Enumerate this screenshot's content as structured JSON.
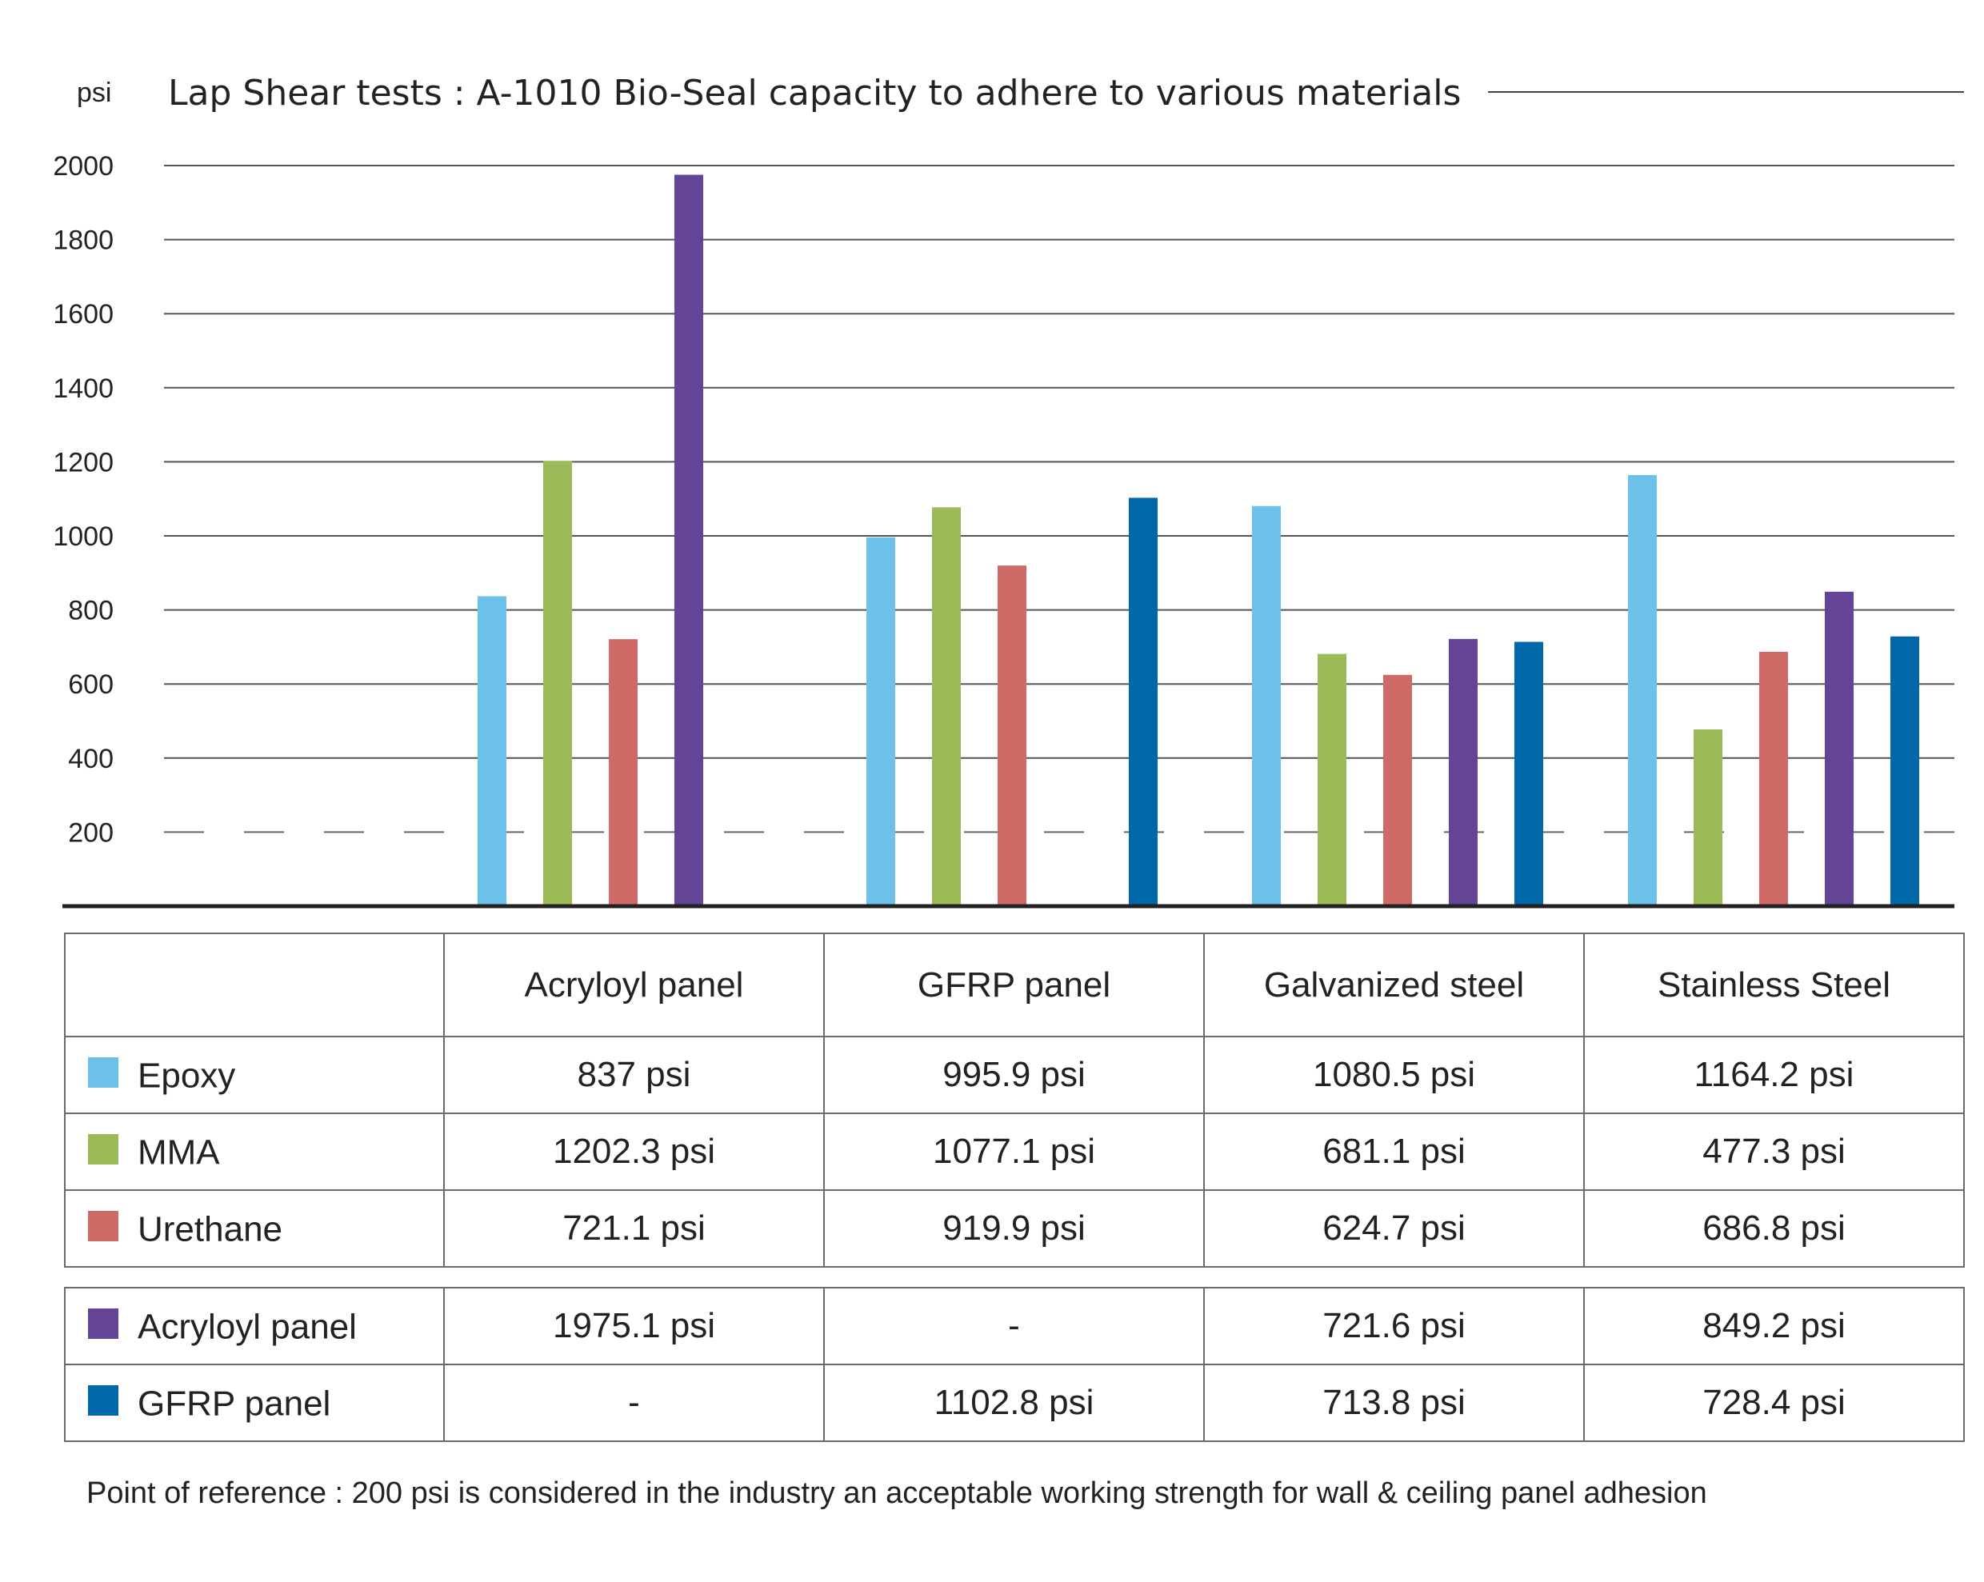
{
  "chart_data": {
    "type": "bar",
    "title": "Lap Shear tests : A-1010 Bio-Seal capacity to adhere to various materials",
    "ylabel": "psi",
    "ylim": [
      0,
      2000
    ],
    "yticks": [
      200,
      400,
      600,
      800,
      1000,
      1200,
      1400,
      1600,
      1800,
      2000
    ],
    "reference_line": 200,
    "grid": true,
    "categories": [
      "Acryloyl panel",
      "GFRP panel",
      "Galvanized steel",
      "Stainless Steel"
    ],
    "series": [
      {
        "name": "Epoxy",
        "color": "#6cc1e8",
        "values": [
          837,
          995.9,
          1080.5,
          1164.2
        ]
      },
      {
        "name": "MMA",
        "color": "#9bbb58",
        "values": [
          1202.3,
          1077.1,
          681.1,
          477.3
        ]
      },
      {
        "name": "Urethane",
        "color": "#d06a66",
        "values": [
          721.1,
          919.9,
          624.7,
          686.8
        ]
      },
      {
        "name": "Acryloyl panel",
        "color": "#634497",
        "values": [
          1975.1,
          null,
          721.6,
          849.2
        ]
      },
      {
        "name": "GFRP panel",
        "color": "#0068a9",
        "values": [
          null,
          1102.8,
          713.8,
          728.4
        ]
      }
    ]
  },
  "table": {
    "headers": [
      "",
      "Acryloyl panel",
      "GFRP panel",
      "Galvanized steel",
      "Stainless Steel"
    ],
    "group1": [
      {
        "label": "Epoxy",
        "color": "#6cc1e8",
        "cells": [
          "837 psi",
          "995.9 psi",
          "1080.5 psi",
          "1164.2 psi"
        ]
      },
      {
        "label": "MMA",
        "color": "#9bbb58",
        "cells": [
          "1202.3 psi",
          "1077.1 psi",
          "681.1 psi",
          "477.3 psi"
        ]
      },
      {
        "label": "Urethane",
        "color": "#d06a66",
        "cells": [
          "721.1 psi",
          "919.9 psi",
          "624.7 psi",
          "686.8 psi"
        ]
      }
    ],
    "group2": [
      {
        "label": "Acryloyl panel",
        "color": "#634497",
        "cells": [
          "1975.1 psi",
          "-",
          "721.6 psi",
          "849.2 psi"
        ]
      },
      {
        "label": "GFRP panel",
        "color": "#0068a9",
        "cells": [
          "-",
          "1102.8 psi",
          "713.8 psi",
          "728.4 psi"
        ]
      }
    ]
  },
  "footnote": "Point of reference : 200 psi is considered in the industry an acceptable working strength for wall & ceiling panel adhesion"
}
